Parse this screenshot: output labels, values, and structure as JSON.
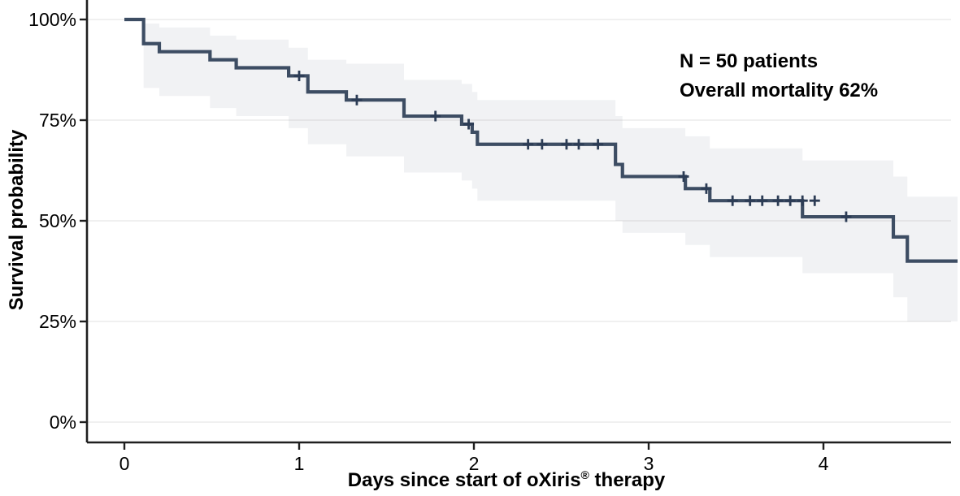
{
  "figure": {
    "kind": "kaplan-meier-survival-plot"
  },
  "annotation": {
    "line1": "N = 50 patients",
    "line2": "Overall mortality 62%"
  },
  "y_axis": {
    "title": "Survival probability",
    "tick_labels": [
      "100%",
      "75%",
      "50%",
      "25%",
      "0%"
    ],
    "tick_values": [
      100,
      75,
      50,
      25,
      0
    ]
  },
  "x_axis": {
    "title_main": "Days since start of oXiris",
    "title_sup": "®",
    "title_tail": " therapy",
    "tick_labels": [
      "0",
      "1",
      "2",
      "3",
      "4"
    ],
    "tick_values": [
      0,
      1,
      2,
      3,
      4
    ]
  },
  "colors": {
    "curve": "#3d4d63",
    "censor": "#2c3c55",
    "band": "rgba(143,153,170,0.13)",
    "grid": "#ebebeb",
    "axis": "#1f1f1f",
    "text": "#000000"
  },
  "chart_data": {
    "type": "line",
    "subtype": "kaplan-meier-step",
    "title": "",
    "xlabel": "Days since start of oXiris® therapy",
    "ylabel": "Survival probability",
    "xlim": [
      0,
      4.78
    ],
    "ylim": [
      0,
      100
    ],
    "grid": "horizontal-only",
    "legend": "none",
    "n_patients": 50,
    "overall_mortality_pct": 62,
    "survival_steps": [
      {
        "t": 0.0,
        "s": 100
      },
      {
        "t": 0.11,
        "s": 94
      },
      {
        "t": 0.2,
        "s": 92
      },
      {
        "t": 0.49,
        "s": 90
      },
      {
        "t": 0.64,
        "s": 88
      },
      {
        "t": 0.94,
        "s": 86
      },
      {
        "t": 1.05,
        "s": 82
      },
      {
        "t": 1.27,
        "s": 80
      },
      {
        "t": 1.6,
        "s": 76
      },
      {
        "t": 1.93,
        "s": 74
      },
      {
        "t": 1.99,
        "s": 72
      },
      {
        "t": 2.02,
        "s": 69
      },
      {
        "t": 2.81,
        "s": 64
      },
      {
        "t": 2.85,
        "s": 61
      },
      {
        "t": 3.21,
        "s": 58
      },
      {
        "t": 3.35,
        "s": 55
      },
      {
        "t": 3.88,
        "s": 51
      },
      {
        "t": 4.4,
        "s": 46
      },
      {
        "t": 4.48,
        "s": 40
      },
      {
        "t": 4.78,
        "s": 40
      }
    ],
    "censor_marks": [
      {
        "t": 1.0,
        "s": 86
      },
      {
        "t": 1.33,
        "s": 80
      },
      {
        "t": 1.78,
        "s": 76
      },
      {
        "t": 1.97,
        "s": 74
      },
      {
        "t": 2.31,
        "s": 69
      },
      {
        "t": 2.39,
        "s": 69
      },
      {
        "t": 2.53,
        "s": 69
      },
      {
        "t": 2.6,
        "s": 69
      },
      {
        "t": 2.71,
        "s": 69
      },
      {
        "t": 3.2,
        "s": 61
      },
      {
        "t": 3.33,
        "s": 58
      },
      {
        "t": 3.48,
        "s": 55
      },
      {
        "t": 3.58,
        "s": 55
      },
      {
        "t": 3.65,
        "s": 55
      },
      {
        "t": 3.74,
        "s": 55
      },
      {
        "t": 3.81,
        "s": 55
      },
      {
        "t": 3.88,
        "s": 55
      },
      {
        "t": 3.95,
        "s": 55
      },
      {
        "t": 4.13,
        "s": 51
      }
    ],
    "confidence_band": [
      {
        "t0": 0.11,
        "t1": 0.2,
        "lower": 83,
        "upper": 99
      },
      {
        "t0": 0.2,
        "t1": 0.49,
        "lower": 81,
        "upper": 98
      },
      {
        "t0": 0.49,
        "t1": 0.64,
        "lower": 78,
        "upper": 96
      },
      {
        "t0": 0.64,
        "t1": 0.94,
        "lower": 76,
        "upper": 95
      },
      {
        "t0": 0.94,
        "t1": 1.05,
        "lower": 73,
        "upper": 93
      },
      {
        "t0": 1.05,
        "t1": 1.27,
        "lower": 69,
        "upper": 90
      },
      {
        "t0": 1.27,
        "t1": 1.6,
        "lower": 66,
        "upper": 89
      },
      {
        "t0": 1.6,
        "t1": 1.93,
        "lower": 62,
        "upper": 85
      },
      {
        "t0": 1.93,
        "t1": 1.99,
        "lower": 60,
        "upper": 84
      },
      {
        "t0": 1.99,
        "t1": 2.02,
        "lower": 58,
        "upper": 82
      },
      {
        "t0": 2.02,
        "t1": 2.81,
        "lower": 55,
        "upper": 80
      },
      {
        "t0": 2.81,
        "t1": 2.85,
        "lower": 50,
        "upper": 76
      },
      {
        "t0": 2.85,
        "t1": 3.21,
        "lower": 47,
        "upper": 73
      },
      {
        "t0": 3.21,
        "t1": 3.35,
        "lower": 44,
        "upper": 71
      },
      {
        "t0": 3.35,
        "t1": 3.88,
        "lower": 41,
        "upper": 68
      },
      {
        "t0": 3.88,
        "t1": 4.4,
        "lower": 37,
        "upper": 65
      },
      {
        "t0": 4.4,
        "t1": 4.48,
        "lower": 31,
        "upper": 61
      },
      {
        "t0": 4.48,
        "t1": 4.78,
        "lower": 25,
        "upper": 56
      }
    ]
  }
}
